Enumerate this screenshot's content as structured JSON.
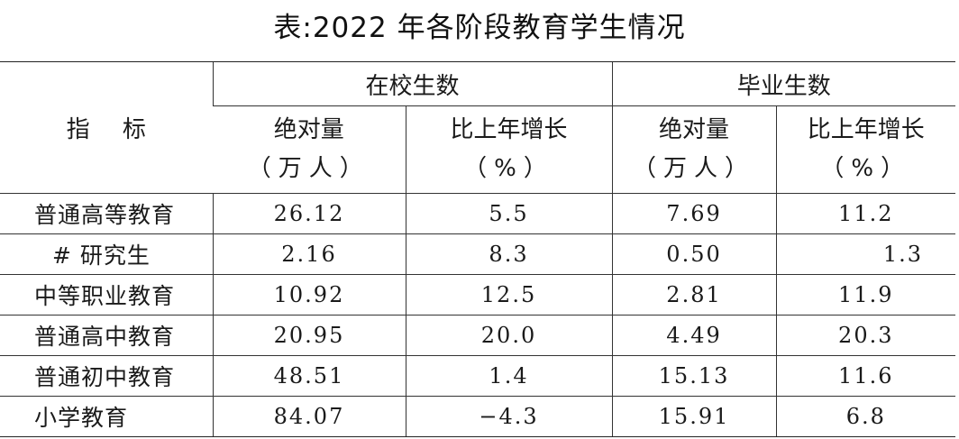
{
  "caption": "表:2022 年各阶段教育学生情况",
  "header": {
    "row_header": "指 标",
    "groups": [
      "在校生数",
      "毕业生数"
    ],
    "sub_columns": [
      {
        "label": "绝对量",
        "unit": "（万人）"
      },
      {
        "label": "比上年增长",
        "unit": "（%）"
      },
      {
        "label": "绝对量",
        "unit": "（万人）"
      },
      {
        "label": "比上年增长",
        "unit": "（%）"
      }
    ]
  },
  "rows": [
    {
      "label": "普通高等教育",
      "enrolled": "26.12",
      "enrolled_growth": "5.5",
      "graduates": "7.69",
      "graduates_growth": "11.2"
    },
    {
      "label": "# 研究生",
      "enrolled": "2.16",
      "enrolled_growth": "8.3",
      "graduates": "0.50",
      "graduates_growth": "1.3"
    },
    {
      "label": "中等职业教育",
      "enrolled": "10.92",
      "enrolled_growth": "12.5",
      "graduates": "2.81",
      "graduates_growth": "11.9"
    },
    {
      "label": "普通高中教育",
      "enrolled": "20.95",
      "enrolled_growth": "20.0",
      "graduates": "4.49",
      "graduates_growth": "20.3"
    },
    {
      "label": "普通初中教育",
      "enrolled": "48.51",
      "enrolled_growth": "1.4",
      "graduates": "15.13",
      "graduates_growth": "11.6"
    },
    {
      "label": "小学教育",
      "enrolled": "84.07",
      "enrolled_growth": "−4.3",
      "graduates": "15.91",
      "graduates_growth": "6.8"
    }
  ]
}
